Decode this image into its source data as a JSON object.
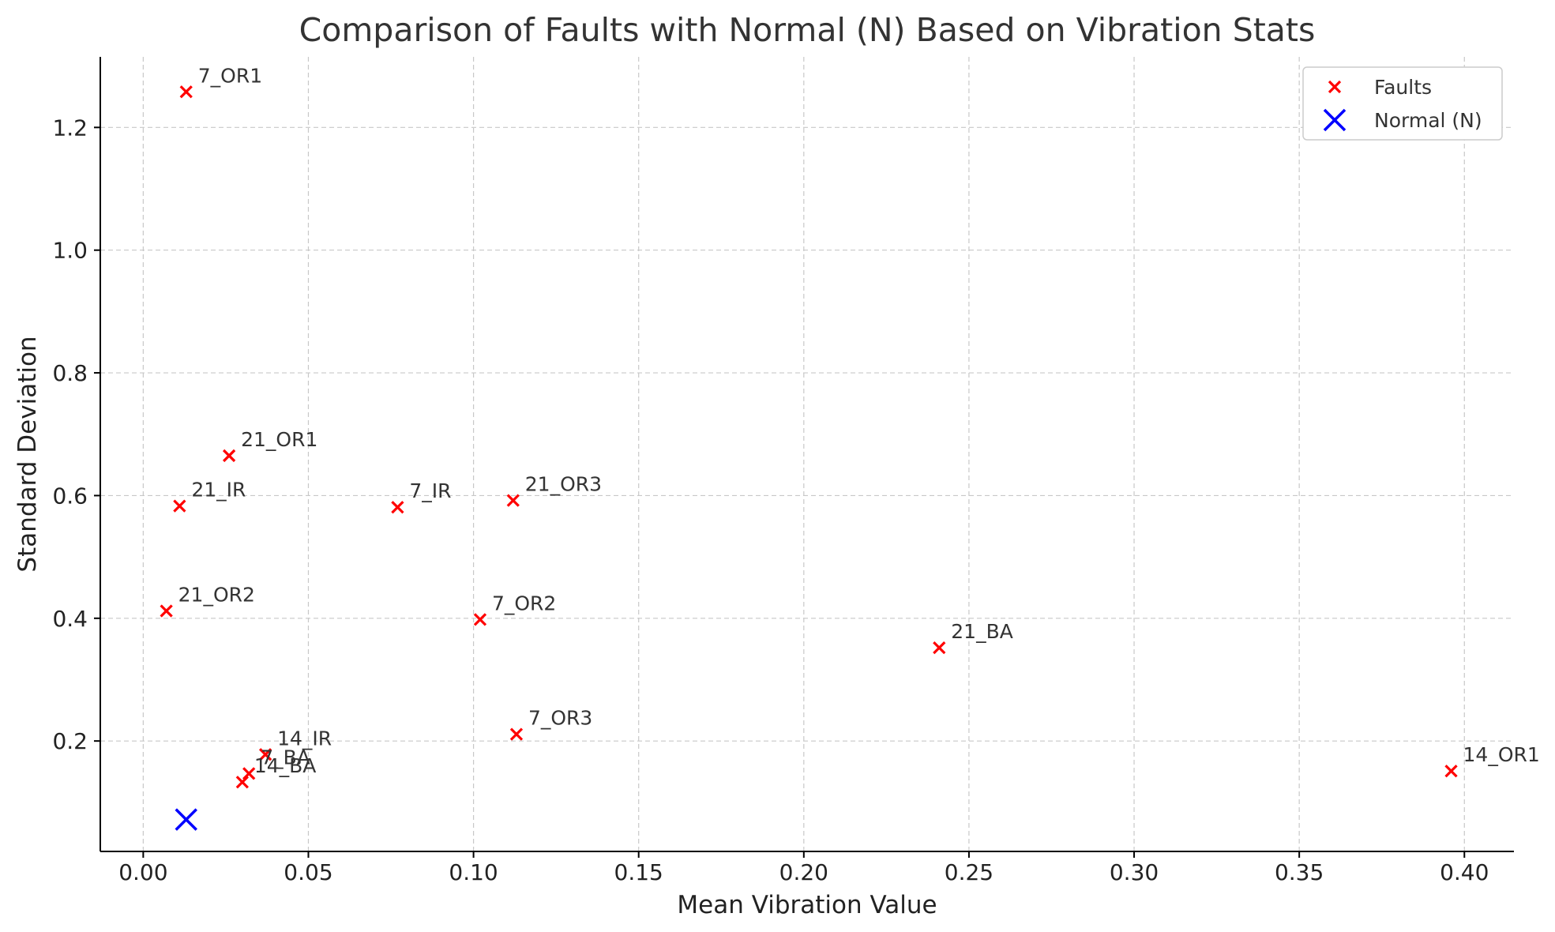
{
  "chart_data": {
    "type": "scatter",
    "title": "Comparison of Faults with Normal (N) Based on Vibration Stats",
    "xlabel": "Mean Vibration Value",
    "ylabel": "Standard Deviation",
    "xlim": [
      -0.013,
      0.415
    ],
    "ylim": [
      0.02,
      1.315
    ],
    "x_ticks": [
      0.0,
      0.05,
      0.1,
      0.15,
      0.2,
      0.25,
      0.3,
      0.35,
      0.4
    ],
    "x_tick_labels": [
      "0.00",
      "0.05",
      "0.10",
      "0.15",
      "0.20",
      "0.25",
      "0.30",
      "0.35",
      "0.40"
    ],
    "y_ticks": [
      0.2,
      0.4,
      0.6,
      0.8,
      1.0,
      1.2
    ],
    "y_tick_labels": [
      "0.2",
      "0.4",
      "0.6",
      "0.8",
      "1.0",
      "1.2"
    ],
    "grid": true,
    "legend_position": "top-right",
    "series": [
      {
        "name": "Faults",
        "color": "#ff0000",
        "marker": "x",
        "points": [
          {
            "label": "7_OR1",
            "x": 0.013,
            "y": 1.258
          },
          {
            "label": "21_OR1",
            "x": 0.026,
            "y": 0.665
          },
          {
            "label": "21_IR",
            "x": 0.011,
            "y": 0.583
          },
          {
            "label": "7_IR",
            "x": 0.077,
            "y": 0.581
          },
          {
            "label": "21_OR3",
            "x": 0.112,
            "y": 0.592
          },
          {
            "label": "21_OR2",
            "x": 0.007,
            "y": 0.412
          },
          {
            "label": "7_OR2",
            "x": 0.102,
            "y": 0.398
          },
          {
            "label": "21_BA",
            "x": 0.241,
            "y": 0.352
          },
          {
            "label": "7_OR3",
            "x": 0.113,
            "y": 0.211
          },
          {
            "label": "14_IR",
            "x": 0.037,
            "y": 0.178
          },
          {
            "label": "7_BA",
            "x": 0.032,
            "y": 0.147
          },
          {
            "label": "14_BA",
            "x": 0.03,
            "y": 0.133
          },
          {
            "label": "14_OR1",
            "x": 0.396,
            "y": 0.151
          }
        ]
      },
      {
        "name": "Normal (N)",
        "color": "#0000ff",
        "marker": "x",
        "points": [
          {
            "label": "",
            "x": 0.013,
            "y": 0.072
          }
        ]
      }
    ]
  }
}
